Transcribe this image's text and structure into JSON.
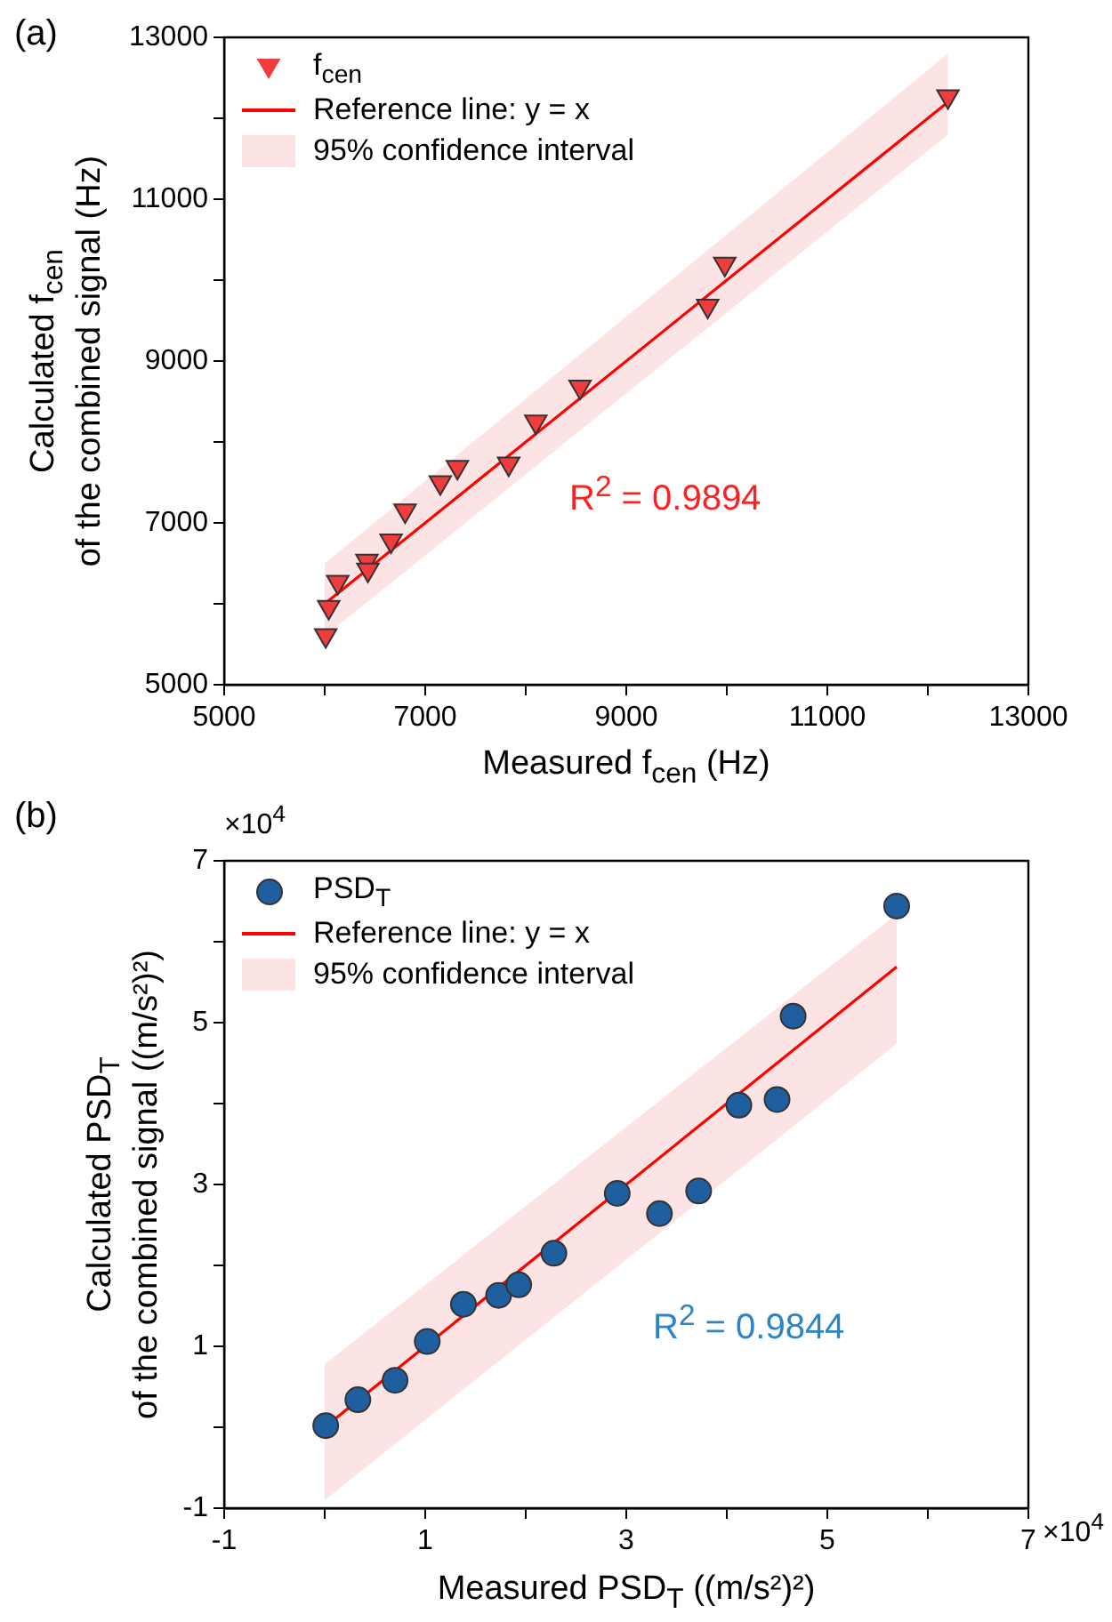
{
  "chart_data": [
    {
      "type": "scatter",
      "title": "(a)",
      "xlabel": "Measured f$_{cen}$ (Hz)",
      "ylabel": "Calculated f$_{cen}$\nof the combined signal (Hz)",
      "legend": "top left",
      "annotations": [
        "R$^{2}$ = 0.9894"
      ],
      "xlim": [
        5000,
        13000
      ],
      "ylim": [
        5000,
        13000
      ],
      "xticks": [
        5000,
        {
          "value": 6000,
          "label": null
        },
        7000,
        {
          "value": 8000,
          "label": null
        },
        9000,
        {
          "value": 10000,
          "label": null
        },
        11000,
        {
          "value": 12000,
          "label": null
        },
        13000
      ],
      "yticks": [
        5000,
        {
          "value": 6000,
          "label": null
        },
        7000,
        {
          "value": 8000,
          "label": null
        },
        9000,
        {
          "value": 10000,
          "label": null
        },
        11000,
        {
          "value": 12000,
          "label": null
        },
        13000
      ],
      "series": [
        {
          "name": "f$_{cen}$",
          "marker": "triangle",
          "color": "#f03c3c",
          "x": [
            6010,
            6040,
            6130,
            6420,
            6430,
            6660,
            6800,
            7150,
            7320,
            7830,
            8100,
            8540,
            9810,
            9980,
            12200
          ],
          "values": [
            5610,
            5960,
            6270,
            6530,
            6420,
            6780,
            7150,
            7500,
            7690,
            7730,
            8250,
            8680,
            9680,
            10200,
            12270
          ]
        },
        {
          "name": "Reference line: y = x",
          "type": "line",
          "marker": "none",
          "color": "#ff0000",
          "x": [
            6000,
            12200
          ],
          "values": [
            6000,
            12200
          ],
          "lower": [
            5600,
            11800
          ],
          "upper": [
            6500,
            12800
          ]
        },
        {
          "name": "95% confidence interval",
          "type": "area",
          "color": "#fde4e4"
        }
      ]
    },
    {
      "type": "scatter",
      "title": "(b)",
      "xlabel": "Measured PSD$_{T}$ ((m/s²)²)",
      "ylabel": "Calculated PSD$_{T}$\nof the combined signal ((m/s²)²)",
      "legend": "top left",
      "annotations": [
        "R$^{2}$ = 0.9844",
        "×10$^{4}$",
        "×10$^{4}$"
      ],
      "xlim": [
        -1,
        7
      ],
      "ylim": [
        -1,
        7
      ],
      "xticks": [
        -1,
        {
          "value": 0,
          "label": null
        },
        1,
        {
          "value": 2,
          "label": null
        },
        3,
        {
          "value": 4,
          "label": null
        },
        5,
        {
          "value": 6,
          "label": null
        },
        7
      ],
      "yticks": [
        -1,
        {
          "value": 0,
          "label": null
        },
        1,
        {
          "value": 2,
          "label": null
        },
        3,
        {
          "value": 4,
          "label": null
        },
        5,
        {
          "value": 6,
          "label": null
        },
        7
      ],
      "series": [
        {
          "name": "PSD$_{T}$",
          "marker": "circle",
          "color": "#1f5fa0",
          "x": [
            0.01,
            0.33,
            0.7,
            1.02,
            1.38,
            1.73,
            1.93,
            2.28,
            2.91,
            3.33,
            3.72,
            4.12,
            4.5,
            4.66,
            5.69
          ],
          "values": [
            0.02,
            0.34,
            0.58,
            1.06,
            1.52,
            1.63,
            1.76,
            2.15,
            2.89,
            2.64,
            2.92,
            3.98,
            4.05,
            5.08,
            6.44
          ]
        },
        {
          "name": "Reference line: y = x",
          "type": "line",
          "marker": "none",
          "color": "#ff0000",
          "x": [
            0,
            5.69
          ],
          "values": [
            0,
            5.69
          ],
          "lower": [
            -0.9,
            4.74
          ],
          "upper": [
            0.78,
            6.34
          ]
        },
        {
          "name": "95% confidence interval",
          "type": "area",
          "color": "#fde4e4"
        }
      ]
    }
  ]
}
